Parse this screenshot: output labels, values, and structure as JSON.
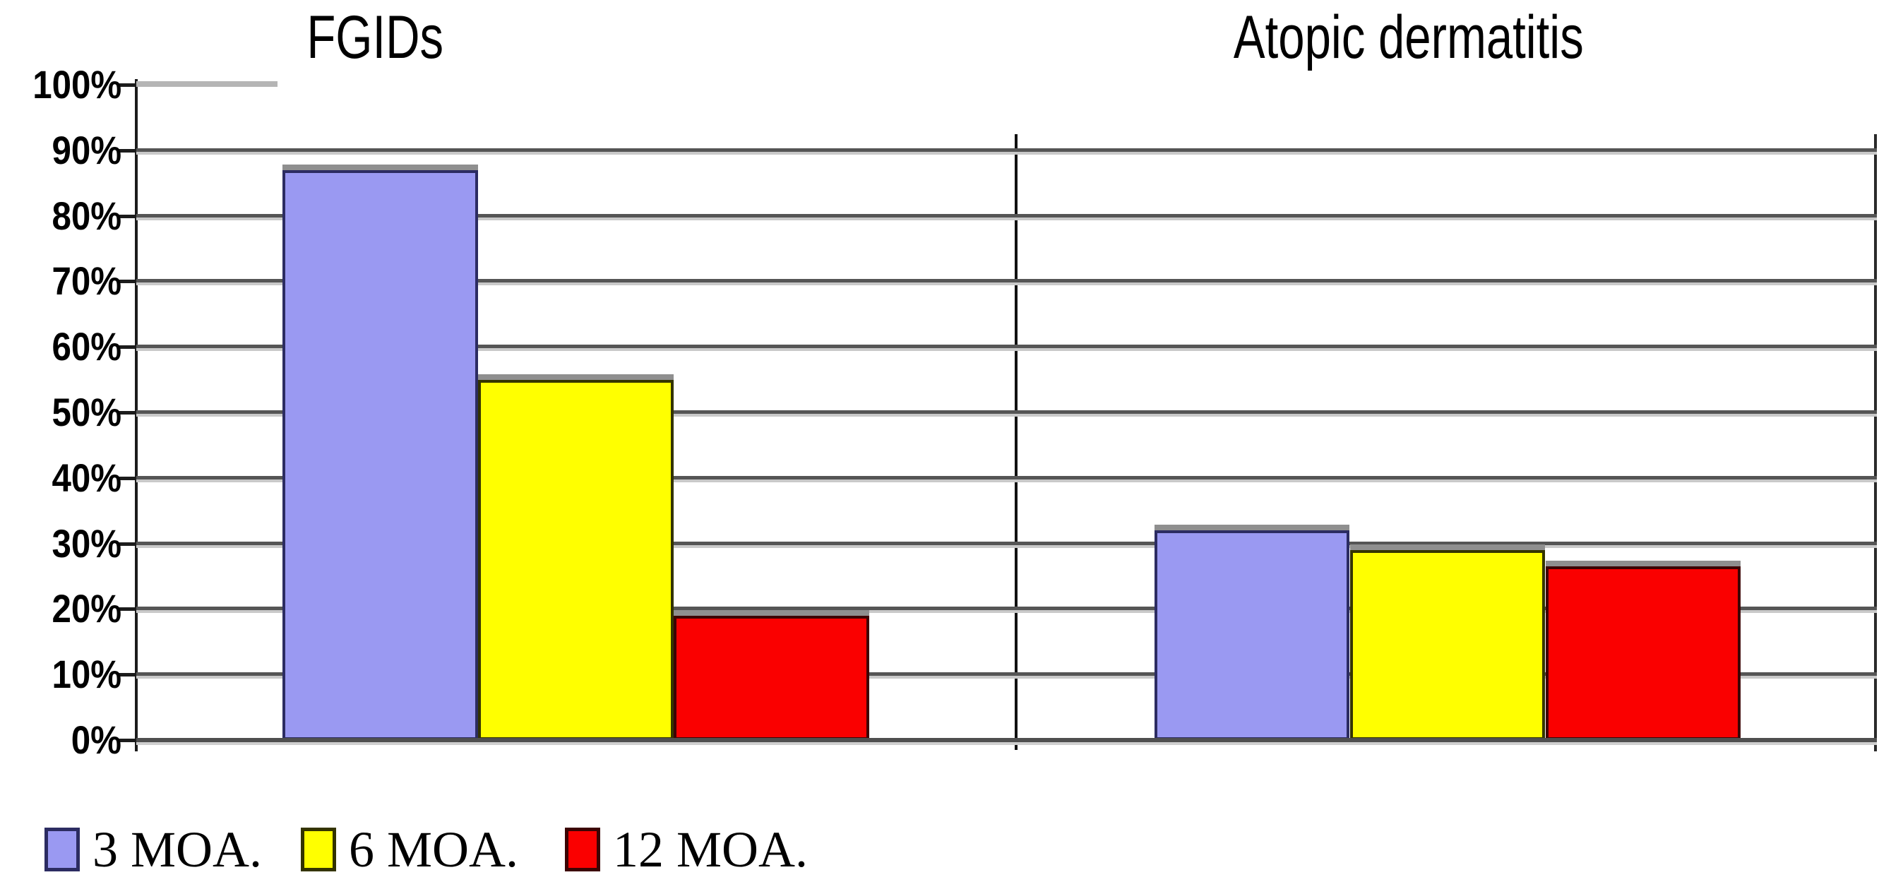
{
  "figure": {
    "panels": [
      {
        "title": "FGIDs"
      },
      {
        "title": "Atopic dermatitis"
      }
    ]
  },
  "y_axis": {
    "tick_labels": [
      "100%",
      "90%",
      "80%",
      "70%",
      "60%",
      "50%",
      "40%",
      "30%",
      "20%",
      "10%",
      "0%"
    ]
  },
  "legend": {
    "items": [
      {
        "label": "3 MOA."
      },
      {
        "label": "6 MOA."
      },
      {
        "label": "12 MOA."
      }
    ]
  },
  "chart_data": {
    "type": "bar",
    "grouping": "grouped",
    "title": "",
    "xlabel": "",
    "ylabel": "",
    "categories": [
      "FGIDs",
      "Atopic dermatitis"
    ],
    "series": [
      {
        "name": "3 MOA.",
        "color": "#9a99f2",
        "border_color": "#2c2c62",
        "values": [
          87,
          32
        ]
      },
      {
        "name": "6 MOA.",
        "color": "#ffff00",
        "border_color": "#343400",
        "values": [
          55,
          29
        ]
      },
      {
        "name": "12 MOA.",
        "color": "#fa0000",
        "border_color": "#3c0404",
        "values": [
          19,
          26.5
        ]
      }
    ],
    "ylim": [
      0,
      100
    ],
    "y_tick_step": 10,
    "y_tick_format": "percent",
    "gridlines": true,
    "legend_position": "bottom-left"
  }
}
